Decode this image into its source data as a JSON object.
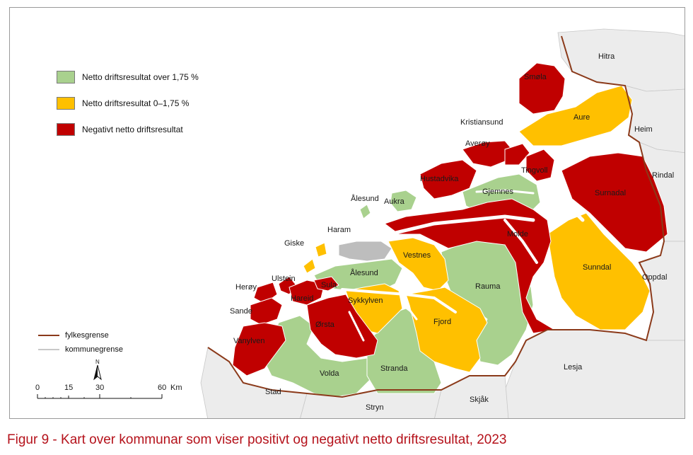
{
  "legend": {
    "items": [
      {
        "label": "Netto driftsresultat over 1,75 %",
        "color": "#a9d18e"
      },
      {
        "label": "Netto driftsresultat 0–1,75 %",
        "color": "#ffc000"
      },
      {
        "label": "Negativt netto driftsresultat",
        "color": "#c00000"
      }
    ]
  },
  "boundary_legend": {
    "county": {
      "label": "fylkesgrense",
      "color": "#8b3a1a"
    },
    "municipality": {
      "label": "kommunegrense",
      "color": "#c8c8c8"
    }
  },
  "scale": {
    "ticks": [
      "0",
      "15",
      "30",
      "60"
    ],
    "unit": "Km"
  },
  "north": "N",
  "colors": {
    "positive": "#a9d18e",
    "small": "#ffc000",
    "negative": "#c00000",
    "outside": "#ececec",
    "nodata": "#bdbdbd"
  },
  "labels": {
    "hitra": "Hitra",
    "smola": "Smøla",
    "aure": "Aure",
    "heim": "Heim",
    "kristiansund": "Kristiansund",
    "rindal": "Rindal",
    "averoy": "Averøy",
    "tingvoll": "Tingvoll",
    "hustadvika": "Hustadvika",
    "surnadal": "Surnadal",
    "gjemnes": "Gjemnes",
    "alesund_n": "Ålesund",
    "aukra": "Aukra",
    "haram": "Haram",
    "molde": "Molde",
    "giske": "Giske",
    "vestnes": "Vestnes",
    "sunndal": "Sunndal",
    "ulstein": "Ulstein",
    "alesund": "Ålesund",
    "oppdal": "Oppdal",
    "heroy": "Herøy",
    "hareid": "Hareid",
    "sula": "Sula",
    "rauma": "Rauma",
    "sykkylven": "Sykkylven",
    "sande": "Sande",
    "fjord": "Fjord",
    "orsta": "Ørsta",
    "vanylven": "Vanylven",
    "lesja": "Lesja",
    "volda": "Volda",
    "stranda": "Stranda",
    "stad": "Stad",
    "skjak": "Skjåk",
    "stryn": "Stryn"
  },
  "caption": "Figur 9 - Kart over kommunar som viser positivt og negativt netto driftsresultat, 2023"
}
